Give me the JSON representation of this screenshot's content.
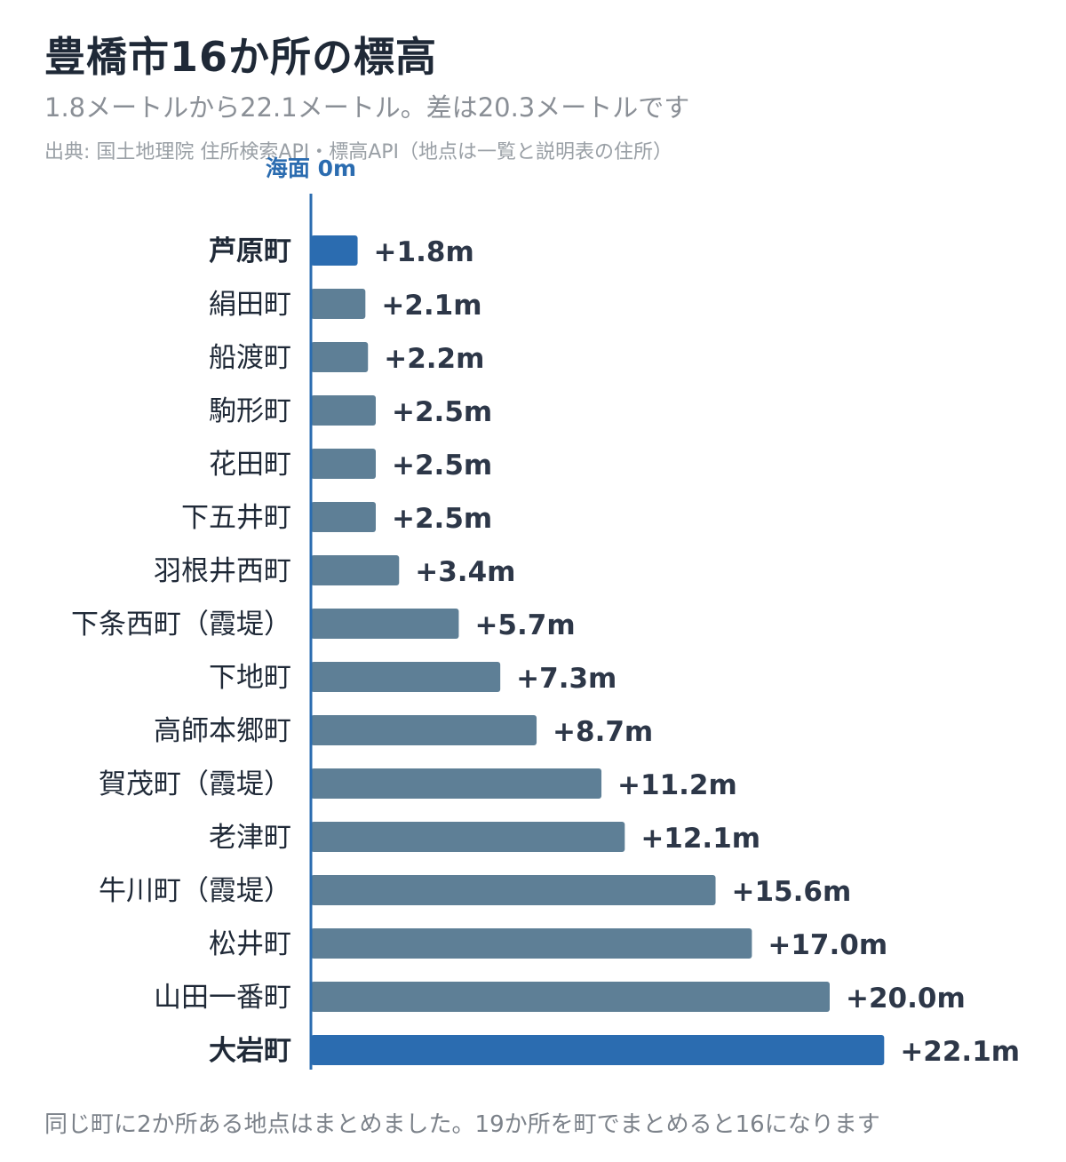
{
  "title": "豊橋市16か所の標高",
  "subtitle": "1.8メートルから22.1メートル。差は20.3メートルです",
  "source": "出典: 国土地理院 住所検索API・標高API（地点は一覧と説明表の住所）",
  "footnote": "同じ町に2か所ある地点はまとめました。19か所を町でまとめると16になります",
  "colors": {
    "highlight": "#2b6cb0",
    "bar": "#5e7f96",
    "axis": "#2b6cb0",
    "label": "#2d3748"
  },
  "chart_data": {
    "type": "bar",
    "orientation": "horizontal",
    "baseline_label": "海面 0m",
    "unit": "m",
    "xlim": [
      0,
      22.1
    ],
    "categories": [
      "芦原町",
      "絹田町",
      "船渡町",
      "駒形町",
      "花田町",
      "下五井町",
      "羽根井西町",
      "下条西町（霞堤）",
      "下地町",
      "高師本郷町",
      "賀茂町（霞堤）",
      "老津町",
      "牛川町（霞堤）",
      "松井町",
      "山田一番町",
      "大岩町"
    ],
    "values": [
      1.8,
      2.1,
      2.2,
      2.5,
      2.5,
      2.5,
      3.4,
      5.7,
      7.3,
      8.7,
      11.2,
      12.1,
      15.6,
      17.0,
      20.0,
      22.1
    ],
    "value_labels": [
      "+1.8m",
      "+2.1m",
      "+2.2m",
      "+2.5m",
      "+2.5m",
      "+2.5m",
      "+3.4m",
      "+5.7m",
      "+7.3m",
      "+8.7m",
      "+11.2m",
      "+12.1m",
      "+15.6m",
      "+17.0m",
      "+20.0m",
      "+22.1m"
    ],
    "highlighted": [
      "芦原町",
      "大岩町"
    ],
    "grid": false,
    "legend": "none"
  }
}
